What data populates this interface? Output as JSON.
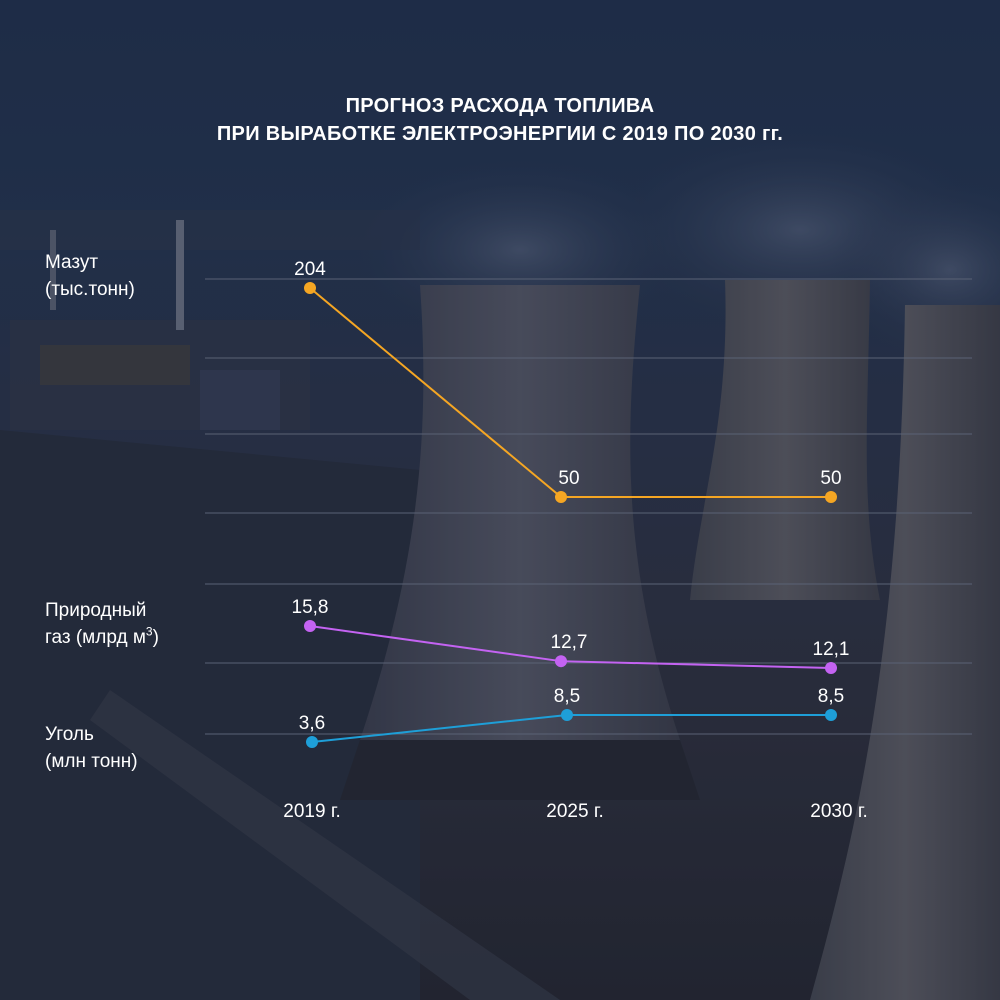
{
  "title": {
    "line1": "ПРОГНОЗ РАСХОДА ТОПЛИВА",
    "line2": "ПРИ ВЫРАБОТКЕ ЭЛЕКТРОЭНЕРГИИ С 2019 ПО 2030 гг."
  },
  "rows": [
    {
      "line1": "Мазут",
      "line2": "(тыс.тонн)"
    },
    {
      "line1": "Природный",
      "line2": "газ (млрд м",
      "sup": "3",
      "line2_end": ")"
    },
    {
      "line1": "Уголь",
      "line2": "(млн тонн)"
    }
  ],
  "chart_data": {
    "type": "line",
    "categories": [
      "2019 г.",
      "2025 г.",
      "2030 г."
    ],
    "series": [
      {
        "name": "Мазут (тыс.тонн)",
        "values": [
          204,
          50,
          50
        ],
        "labels": [
          "204",
          "50",
          "50"
        ],
        "color": "#f5a623"
      },
      {
        "name": "Природный газ (млрд м3)",
        "values": [
          15.8,
          12.7,
          12.1
        ],
        "labels": [
          "15,8",
          "12,7",
          "12,1"
        ],
        "color": "#c463f2"
      },
      {
        "name": "Уголь (млн тонн)",
        "values": [
          3.6,
          8.5,
          8.5
        ],
        "labels": [
          "3,6",
          "8,5",
          "8,5"
        ],
        "color": "#1e9fd8"
      }
    ],
    "grid": true,
    "legend": "none",
    "colors": {
      "grid": "#5a6275",
      "text": "#ffffff"
    }
  }
}
